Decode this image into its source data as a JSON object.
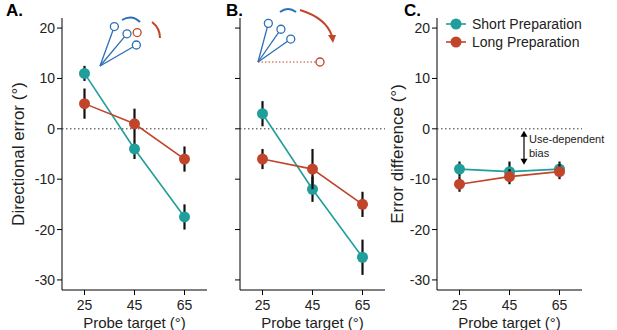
{
  "chart_data": [
    {
      "type": "line",
      "title": "A.",
      "x_label": "Probe target (°)",
      "y_label": "Directional error (°)",
      "x": [
        25,
        45,
        65
      ],
      "xlim": [
        16,
        74
      ],
      "xticks": [
        25,
        45,
        65
      ],
      "ylim": [
        -32,
        22
      ],
      "yticks": [
        -30,
        -20,
        -10,
        0,
        10,
        20
      ],
      "reference_line": 0,
      "marker": "circle",
      "line_style": "solid",
      "series": [
        {
          "color": "#1f9e9b",
          "values": [
            11,
            -4,
            -17.5
          ],
          "errors": [
            1.5,
            2,
            2.5
          ]
        },
        {
          "color": "#c1452b",
          "values": [
            5,
            1,
            -6
          ],
          "errors": [
            3,
            3,
            2.5
          ]
        }
      ]
    },
    {
      "type": "line",
      "title": "B.",
      "x_label": "Probe target (°)",
      "x": [
        25,
        45,
        65
      ],
      "xlim": [
        16,
        74
      ],
      "xticks": [
        25,
        45,
        65
      ],
      "ylim": [
        -32,
        22
      ],
      "yticks": [
        -30,
        -20,
        -10,
        0,
        10,
        20
      ],
      "reference_line": 0,
      "tick_labels": "x",
      "marker": "circle",
      "line_style": "solid",
      "series": [
        {
          "color": "#1f9e9b",
          "values": [
            3,
            -12,
            -25.5
          ],
          "errors": [
            2.5,
            2.5,
            3.5
          ]
        },
        {
          "color": "#c1452b",
          "values": [
            -6,
            -8,
            -15
          ],
          "errors": [
            2,
            4,
            2.5
          ]
        }
      ]
    },
    {
      "type": "line",
      "title": "C.",
      "x_label": "Probe target (°)",
      "y_label": "Error difference (°)",
      "x": [
        25,
        45,
        65
      ],
      "xlim": [
        16,
        74
      ],
      "xticks": [
        25,
        45,
        65
      ],
      "ylim": [
        -32,
        22
      ],
      "yticks": [
        -30,
        -20,
        -10,
        0,
        10,
        20
      ],
      "reference_line": 0,
      "legend": "top-left",
      "annotation": "Use-dependent bias",
      "marker": "circle",
      "line_style": "solid",
      "series": [
        {
          "name": "Short Preparation",
          "color": "#1f9e9b",
          "values": [
            -8,
            -8.5,
            -8
          ],
          "errors": [
            1.5,
            2,
            1.5
          ]
        },
        {
          "name": "Long Preparation",
          "color": "#c1452b",
          "values": [
            -11,
            -9.5,
            -8.5
          ],
          "errors": [
            1.5,
            1.5,
            1.5
          ]
        }
      ]
    }
  ]
}
